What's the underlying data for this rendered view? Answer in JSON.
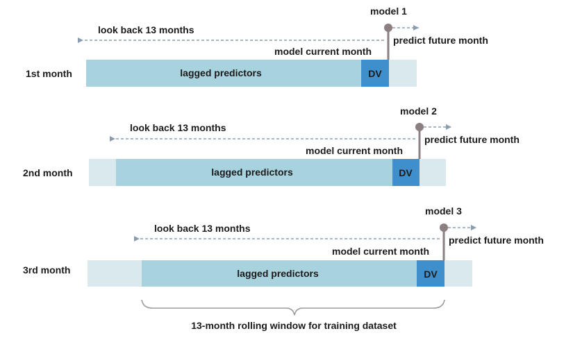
{
  "colors": {
    "bar_light": "#d9e9ee",
    "bar_main": "#a7d2de",
    "dv_box": "#3f8fcc",
    "marker": "#8c7f82",
    "dashed": "#8a9db0",
    "text": "#1a1a1a"
  },
  "rows": [
    {
      "row_label": "1st month",
      "model_label": "model 1",
      "look_back": "look back 13 months",
      "current_label": "model current month",
      "future_label": "predict future month",
      "bar_label": "lagged predictors",
      "dv_label": "DV"
    },
    {
      "row_label": "2nd month",
      "model_label": "model 2",
      "look_back": "look back 13 months",
      "current_label": "model current month",
      "future_label": "predict future month",
      "bar_label": "lagged predictors",
      "dv_label": "DV"
    },
    {
      "row_label": "3rd month",
      "model_label": "model 3",
      "look_back": "look back 13 months",
      "current_label": "model current month",
      "future_label": "predict future month",
      "bar_label": "lagged predictors",
      "dv_label": "DV"
    }
  ],
  "window_caption": "13-month rolling window for training dataset"
}
